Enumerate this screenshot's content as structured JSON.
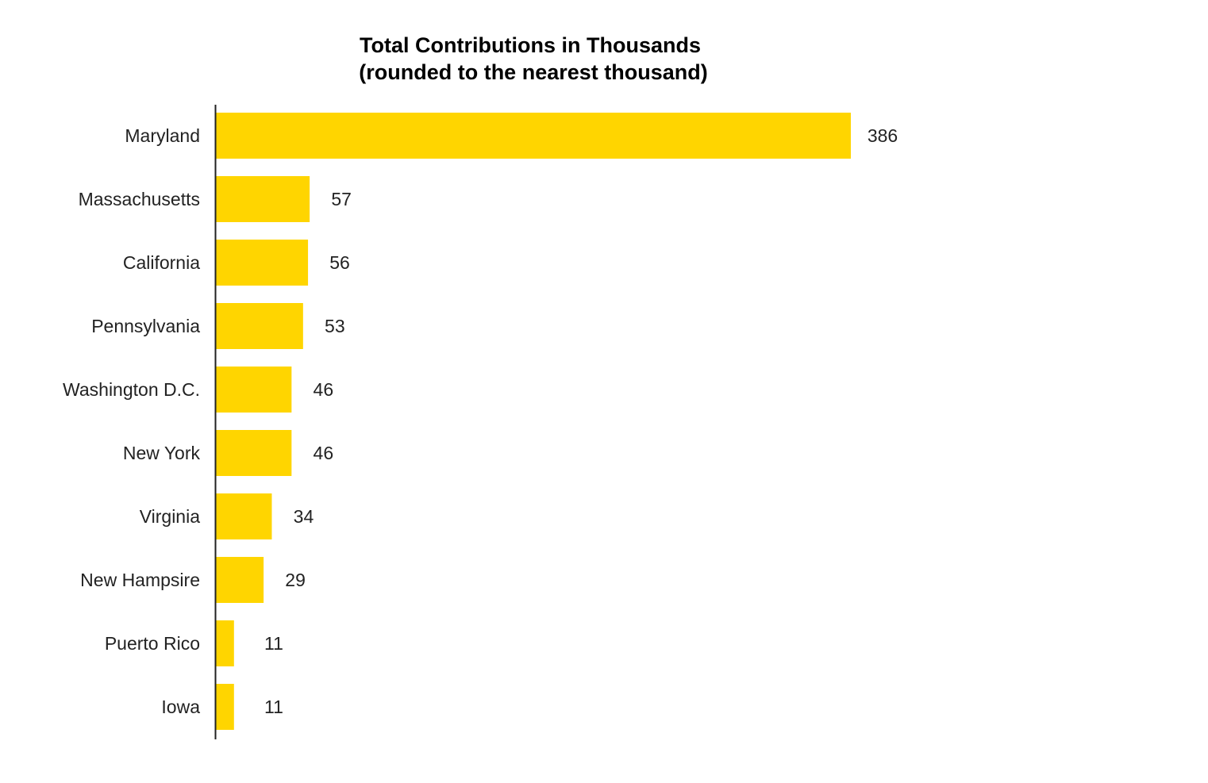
{
  "chart_data": {
    "type": "bar",
    "orientation": "horizontal",
    "title": "Total Contributions in Thousands",
    "subtitle": "(rounded to the nearest thousand)",
    "xlabel": "",
    "ylabel": "",
    "categories": [
      "Maryland",
      "Massachusetts",
      "California",
      "Pennsylvania",
      "Washington D.C.",
      "New York",
      "Virginia",
      "New Hampsire",
      "Puerto Rico",
      "Iowa"
    ],
    "values": [
      386,
      57,
      56,
      53,
      46,
      46,
      34,
      29,
      11,
      11
    ],
    "xlim": [
      0,
      386
    ],
    "grid": false,
    "legend": "none",
    "data_labels": true,
    "colors": {
      "bar": "#FFD500",
      "axis": "#222222",
      "text": "#222222",
      "title": "#000000"
    }
  }
}
